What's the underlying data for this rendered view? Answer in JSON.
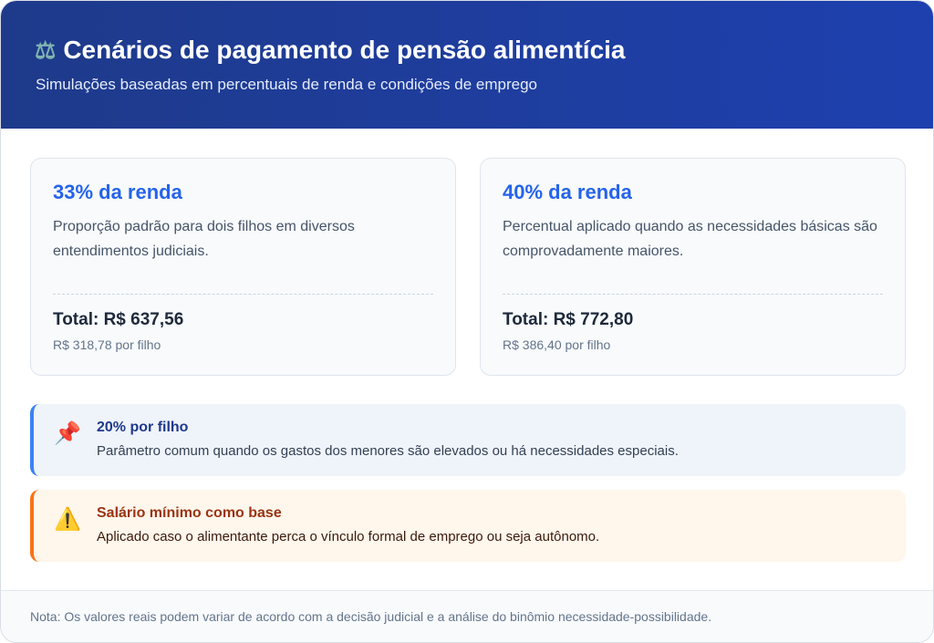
{
  "header": {
    "icon": "scales-icon",
    "title": "Cenários de pagamento de pensão alimentícia",
    "subtitle": "Simulações baseadas em percentuais de renda e condições de emprego"
  },
  "cards": [
    {
      "heading": "33% da renda",
      "description": "Proporção padrão para dois filhos em diversos entendimentos judiciais.",
      "total": "Total: R$ 637,56",
      "per_child": "R$ 318,78 por filho"
    },
    {
      "heading": "40% da renda",
      "description": "Percentual aplicado quando as necessidades básicas são comprovadamente maiores.",
      "total": "Total: R$ 772,80",
      "per_child": "R$ 386,40 por filho"
    }
  ],
  "callouts": [
    {
      "icon": "pushpin-icon",
      "glyph": "📌",
      "title": "20% por filho",
      "description": "Parâmetro comum quando os gastos dos menores são elevados ou há necessidades especiais.",
      "accent": "#3b82f6"
    },
    {
      "icon": "warning-icon",
      "glyph": "⚠️",
      "title": "Salário mínimo como base",
      "description": "Aplicado caso o alimentante perca o vínculo formal de emprego ou seja autônomo.",
      "accent": "#f97316"
    }
  ],
  "footer": {
    "note": "Nota: Os valores reais podem variar de acordo com a decisão judicial e a análise do binômio necessidade-possibilidade."
  },
  "colors": {
    "header": "#1e40af",
    "accent": "#2563eb"
  }
}
